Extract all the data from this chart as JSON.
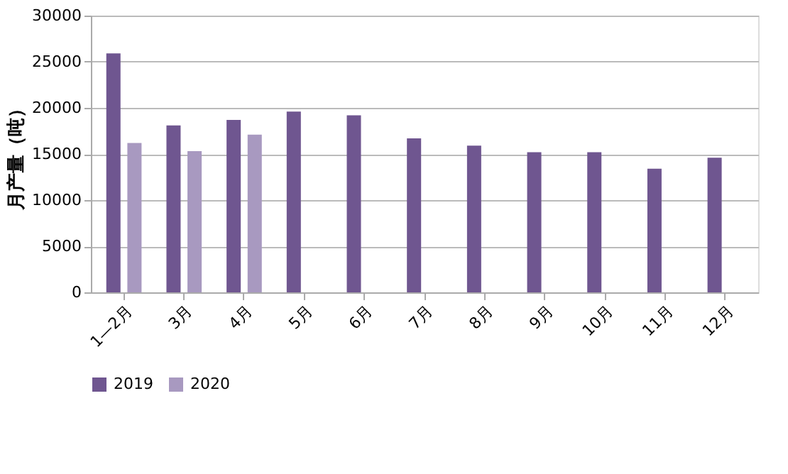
{
  "chart_data": {
    "type": "bar",
    "ylabel": "月产量（吨）",
    "categories": [
      "1—2月",
      "3月",
      "4月",
      "5月",
      "6月",
      "7月",
      "8月",
      "9月",
      "10月",
      "11月",
      "12月"
    ],
    "series": [
      {
        "name": "2019",
        "color": "#6f5690",
        "values": [
          25900,
          18100,
          18700,
          19600,
          19200,
          16700,
          15900,
          15200,
          15200,
          13400,
          14600
        ]
      },
      {
        "name": "2020",
        "color": "#a899c0",
        "values": [
          16200,
          15300,
          17100,
          null,
          null,
          null,
          null,
          null,
          null,
          null,
          null
        ]
      }
    ],
    "ylim": [
      0,
      30000
    ],
    "yticks": [
      0,
      5000,
      10000,
      15000,
      20000,
      25000,
      30000
    ],
    "grid": "y",
    "legend": "bottom"
  }
}
